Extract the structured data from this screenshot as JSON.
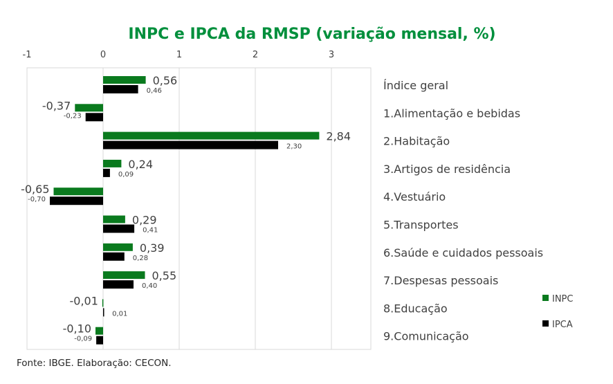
{
  "chart_data": {
    "type": "bar",
    "orientation": "horizontal",
    "title": "INPC e IPCA da RMSP (variação mensal, %)",
    "categories": [
      "Índice geral",
      "1.Alimentação e bebidas",
      "2.Habitação",
      "3.Artigos de residência",
      "4.Vestuário",
      "5.Transportes",
      "6.Saúde e cuidados pessoais",
      "7.Despesas pessoais",
      "8.Educação",
      "9.Comunicação"
    ],
    "series": [
      {
        "name": "INPC",
        "color": "#0a7a1e",
        "values": [
          0.56,
          -0.37,
          2.84,
          0.24,
          -0.65,
          0.29,
          0.39,
          0.55,
          -0.01,
          -0.1
        ],
        "labels": [
          "0,56",
          "-0,37",
          "2,84",
          "0,24",
          "-0,65",
          "0,29",
          "0,39",
          "0,55",
          "-0,01",
          "-0,10"
        ]
      },
      {
        "name": "IPCA",
        "color": "#000000",
        "values": [
          0.46,
          -0.23,
          2.3,
          0.09,
          -0.7,
          0.41,
          0.28,
          0.4,
          0.01,
          -0.09
        ],
        "labels": [
          "0,46",
          "-0,23",
          "2,30",
          "0,09",
          "-0,70",
          "0,41",
          "0,28",
          "0,40",
          "0,01",
          "-0,09"
        ]
      }
    ],
    "xlim": [
      -1,
      3.5
    ],
    "xticks": [
      -1,
      0,
      1,
      2,
      3
    ],
    "xtick_labels": [
      "-1",
      "0",
      "1",
      "2",
      "3"
    ],
    "axis_position": "top",
    "grid": true,
    "legend_position": "bottom-right",
    "source": "Fonte: IBGE. Elaboração: CECON."
  }
}
